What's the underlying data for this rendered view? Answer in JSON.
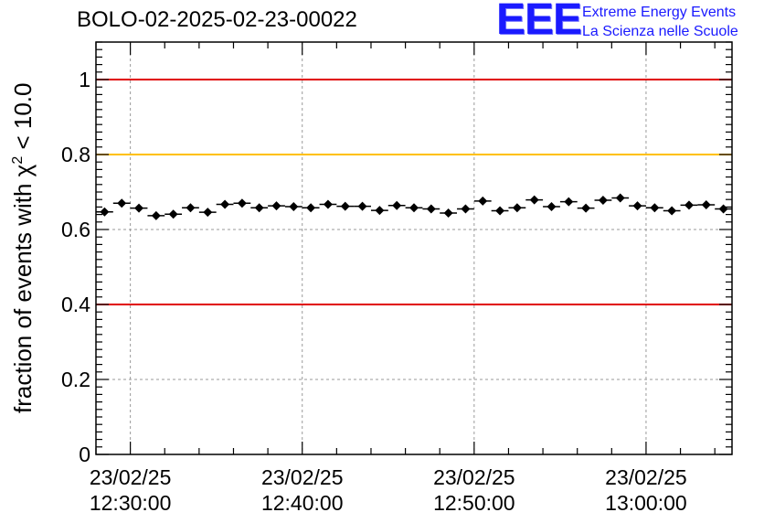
{
  "chart_data": {
    "type": "scatter",
    "title": "BOLO-02-2025-02-23-00022",
    "xlabel": "",
    "ylabel_prefix": "fraction of events with ",
    "ylabel_symbol": "χ",
    "ylabel_exp": "2",
    "ylabel_suffix": " < 10.0",
    "ylim": [
      0,
      1.1
    ],
    "yticks": [
      {
        "v": 0,
        "label": "0"
      },
      {
        "v": 0.2,
        "label": "0.2"
      },
      {
        "v": 0.4,
        "label": "0.4"
      },
      {
        "v": 0.6,
        "label": "0.6"
      },
      {
        "v": 0.8,
        "label": "0.8"
      },
      {
        "v": 1,
        "label": "1"
      }
    ],
    "xlim_minutes": [
      0,
      37
    ],
    "xticks": [
      {
        "t": 2,
        "date": "23/02/25",
        "time": "12:30:00"
      },
      {
        "t": 12,
        "date": "23/02/25",
        "time": "12:40:00"
      },
      {
        "t": 22,
        "date": "23/02/25",
        "time": "12:50:00"
      },
      {
        "t": 32,
        "date": "23/02/25",
        "time": "13:00:00"
      }
    ],
    "grid": true,
    "reference_lines": [
      {
        "y": 1.0,
        "color": "#e00000"
      },
      {
        "y": 0.8,
        "color": "#ffc000"
      },
      {
        "y": 0.4,
        "color": "#e00000"
      }
    ],
    "series": [
      {
        "name": "fraction",
        "x_bin_minutes": 1,
        "x_start_minutes": 0,
        "values": [
          0.647,
          0.67,
          0.657,
          0.637,
          0.641,
          0.658,
          0.646,
          0.667,
          0.67,
          0.658,
          0.663,
          0.661,
          0.658,
          0.667,
          0.662,
          0.662,
          0.651,
          0.664,
          0.658,
          0.655,
          0.644,
          0.655,
          0.676,
          0.65,
          0.658,
          0.679,
          0.661,
          0.674,
          0.657,
          0.678,
          0.684,
          0.663,
          0.658,
          0.65,
          0.665,
          0.666,
          0.655
        ],
        "errors": 0.009
      }
    ]
  },
  "logo": {
    "mark": "EEE",
    "line1": "Extreme Energy Events",
    "line2": "La Scienza nelle Scuole"
  }
}
